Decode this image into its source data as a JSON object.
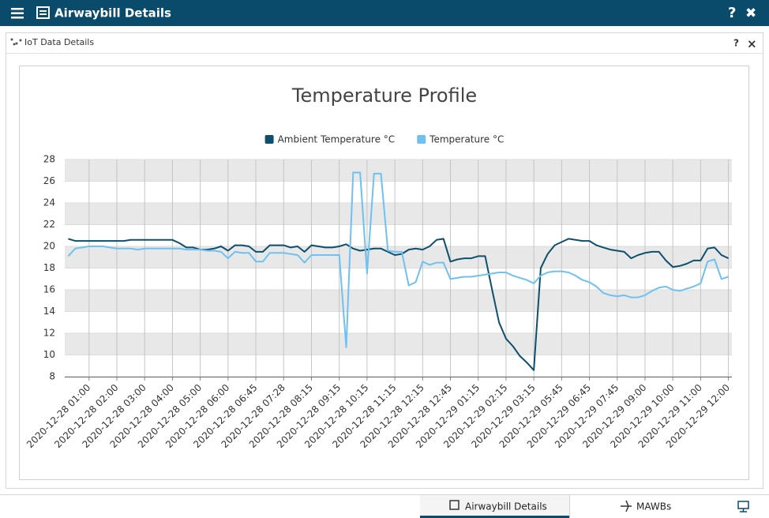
{
  "header": {
    "title": "Airwaybill Details",
    "help": "?",
    "close": "✖"
  },
  "panel": {
    "title": "IoT Data Details",
    "help": "?",
    "close": "×"
  },
  "chart_data": {
    "type": "line",
    "title": "Temperature Profile",
    "categories": [
      null,
      null,
      null,
      "2020-12-28 01:00",
      null,
      null,
      null,
      "2020-12-28 02:00",
      null,
      null,
      null,
      "2020-12-28 03:00",
      null,
      null,
      null,
      "2020-12-28 04:00",
      null,
      null,
      null,
      "2020-12-28 05:00",
      null,
      null,
      null,
      "2020-12-28 06:00",
      null,
      null,
      null,
      "2020-12-28 06:45",
      null,
      null,
      null,
      "2020-12-28 07:28",
      null,
      null,
      null,
      "2020-12-28 08:15",
      null,
      null,
      null,
      "2020-12-28 09:15",
      null,
      null,
      null,
      "2020-12-28 10:15",
      null,
      null,
      null,
      "2020-12-28 11:15",
      null,
      null,
      null,
      "2020-12-28 12:15",
      null,
      null,
      null,
      "2020-12-28 12:45",
      null,
      null,
      null,
      "2020-12-29 01:15",
      null,
      null,
      null,
      "2020-12-29 02:15",
      null,
      null,
      null,
      "2020-12-29 03:15",
      null,
      null,
      null,
      "2020-12-29 05:45",
      null,
      null,
      null,
      "2020-12-29 06:45",
      null,
      null,
      null,
      "2020-12-29 07:45",
      null,
      null,
      null,
      "2020-12-29 09:00",
      null,
      null,
      null,
      "2020-12-29 10:00",
      null,
      null,
      null,
      "2020-12-29 11:00",
      null,
      null,
      null,
      "2020-12-29 12:00"
    ],
    "series": [
      {
        "name": "Ambient Temperature °C",
        "color": "#0d4f6c",
        "values": [
          20.7,
          20.5,
          20.5,
          20.5,
          20.5,
          20.5,
          20.5,
          20.5,
          20.5,
          20.6,
          20.6,
          20.6,
          20.6,
          20.6,
          20.6,
          20.6,
          20.3,
          19.9,
          19.9,
          19.7,
          19.7,
          19.8,
          20.0,
          19.6,
          20.1,
          20.1,
          20.0,
          19.5,
          19.5,
          20.1,
          20.1,
          20.1,
          19.9,
          20.0,
          19.5,
          20.1,
          20.0,
          19.9,
          19.9,
          20.0,
          20.2,
          19.8,
          19.6,
          19.7,
          19.8,
          19.8,
          19.5,
          19.2,
          19.3,
          19.7,
          19.8,
          19.7,
          20.0,
          20.6,
          20.7,
          18.6,
          18.8,
          18.9,
          18.9,
          19.1,
          19.1,
          16.0,
          13.0,
          11.5,
          10.8,
          9.9,
          9.3,
          8.6,
          18.0,
          19.3,
          20.1,
          20.4,
          20.7,
          20.6,
          20.5,
          20.5,
          20.1,
          19.9,
          19.7,
          19.6,
          19.5,
          18.9,
          19.2,
          19.4,
          19.5,
          19.5,
          18.7,
          18.1,
          18.2,
          18.4,
          18.7,
          18.7,
          19.8,
          19.9,
          19.2,
          18.9
        ]
      },
      {
        "name": "Temperature °C",
        "color": "#6ec1f0",
        "values": [
          19.1,
          19.8,
          19.9,
          20.0,
          20.0,
          20.0,
          19.9,
          19.8,
          19.8,
          19.8,
          19.7,
          19.8,
          19.8,
          19.8,
          19.8,
          19.8,
          19.8,
          19.7,
          19.7,
          19.7,
          19.6,
          19.6,
          19.5,
          18.9,
          19.5,
          19.4,
          19.4,
          18.6,
          18.6,
          19.4,
          19.4,
          19.4,
          19.3,
          19.2,
          18.5,
          19.2,
          19.2,
          19.2,
          19.2,
          19.2,
          10.7,
          26.8,
          26.8,
          17.5,
          26.7,
          26.7,
          19.6,
          19.5,
          19.5,
          16.4,
          16.7,
          18.6,
          18.3,
          18.5,
          18.5,
          17.0,
          17.1,
          17.2,
          17.2,
          17.3,
          17.4,
          17.5,
          17.6,
          17.6,
          17.3,
          17.1,
          16.9,
          16.6,
          17.3,
          17.6,
          17.7,
          17.7,
          17.6,
          17.3,
          16.9,
          16.7,
          16.3,
          15.7,
          15.5,
          15.4,
          15.5,
          15.3,
          15.3,
          15.5,
          15.9,
          16.2,
          16.3,
          16.0,
          15.9,
          16.1,
          16.3,
          16.6,
          18.6,
          18.8,
          17.0,
          17.2
        ]
      }
    ],
    "ylim": [
      8,
      28
    ],
    "yticks": [
      8,
      10,
      12,
      14,
      16,
      18,
      20,
      22,
      24,
      26,
      28
    ],
    "grid": true
  },
  "footer": {
    "tabs": [
      "Airwaybill Details",
      "MAWBs"
    ]
  }
}
